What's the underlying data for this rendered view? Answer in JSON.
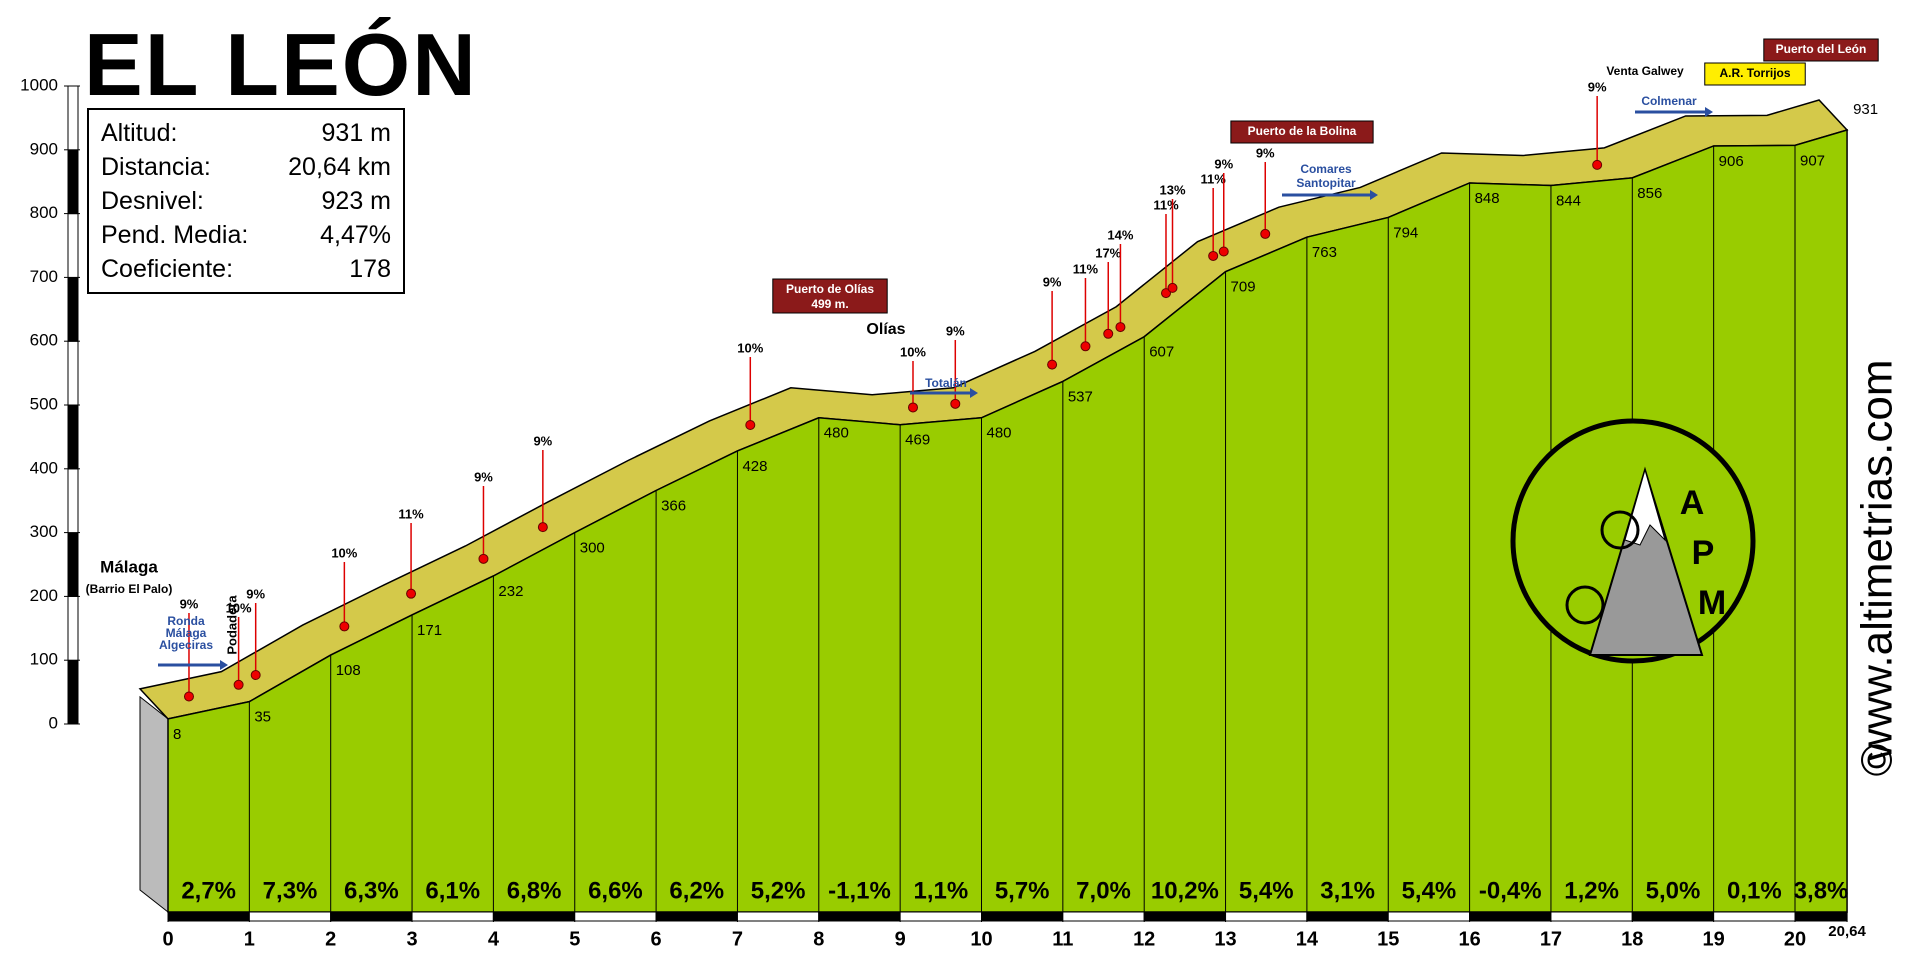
{
  "chart_data": {
    "type": "profile",
    "title": "EL LEÓN",
    "color": "#99cc00",
    "x": [
      0,
      1,
      2,
      3,
      4,
      5,
      6,
      7,
      8,
      9,
      10,
      11,
      12,
      13,
      14,
      15,
      16,
      17,
      18,
      19,
      20,
      20.64
    ],
    "values": [
      8,
      35,
      108,
      171,
      232,
      300,
      366,
      428,
      480,
      469,
      480,
      537,
      607,
      709,
      763,
      794,
      848,
      844,
      856,
      906,
      907,
      931
    ],
    "xlim": [
      0,
      20.64
    ],
    "ylim": [
      0,
      1000
    ],
    "yticks": [
      0,
      100,
      200,
      300,
      400,
      500,
      600,
      700,
      800,
      900,
      1000
    ],
    "xticks": [
      0,
      1,
      2,
      3,
      4,
      5,
      6,
      7,
      8,
      9,
      10,
      11,
      12,
      13,
      14,
      15,
      16,
      17,
      18,
      19,
      20,
      {
        "value": 20.64,
        "label": "20,64"
      }
    ],
    "segment_gradients": {
      "values": [
        2.7,
        7.3,
        6.3,
        6.1,
        6.8,
        6.6,
        6.2,
        5.2,
        -1.1,
        1.1,
        5.7,
        7.0,
        10.2,
        5.4,
        3.1,
        5.4,
        -0.4,
        1.2,
        5.0,
        0.1,
        3.8
      ],
      "value_labels": [
        "2,7%",
        "7,3%",
        "6,3%",
        "6,1%",
        "6,8%",
        "6,6%",
        "6,2%",
        "5,2%",
        "-1,1%",
        "1,1%",
        "5,7%",
        "7,0%",
        "10,2%",
        "5,4%",
        "3,1%",
        "5,4%",
        "-0,4%",
        "1,2%",
        "5,0%",
        "0,1%",
        "3,8%"
      ]
    },
    "spot_gradients": {
      "x": [
        0.43,
        1.04,
        1.25,
        2.34,
        3.16,
        4.05,
        4.78,
        7.33,
        9.33,
        9.85,
        11.04,
        11.45,
        11.73,
        11.88,
        12.44,
        12.52,
        13.02,
        13.15,
        13.66,
        17.74
      ],
      "values": [
        9,
        10,
        9,
        10,
        11,
        9,
        9,
        10,
        10,
        9,
        9,
        11,
        17,
        14,
        11,
        13,
        11,
        9,
        9,
        9
      ],
      "value_labels": [
        "9%",
        "10%",
        "9%",
        "10%",
        "11%",
        "9%",
        "9%",
        "10%",
        "10%",
        "9%",
        "9%",
        "11%",
        "17%",
        "14%",
        "11%",
        "13%",
        "11%",
        "9%",
        "9%",
        "9%"
      ]
    }
  },
  "info": {
    "rows": [
      [
        "Altitud:",
        "931 m"
      ],
      [
        "Distancia:",
        "20,64 km"
      ],
      [
        "Desnivel:",
        "923 m"
      ],
      [
        "Pend. Media:",
        "4,47%"
      ],
      [
        "Coeficiente:",
        "178"
      ]
    ]
  },
  "places": [
    "Málaga",
    "(Barrio El Palo)",
    "Ronda",
    "Málaga",
    "Algeciras",
    "Podadera",
    "Puerto de Olías",
    "499 m.",
    "Olías",
    "Totalán",
    "Puerto de la Bolina",
    "Comares",
    "Santopitar",
    "Venta Galwey",
    "A.R. Torrijos",
    "Colmenar",
    "Puerto del León"
  ],
  "logo": "APM",
  "website": "www.altimetrias.com",
  "copyright": "©"
}
